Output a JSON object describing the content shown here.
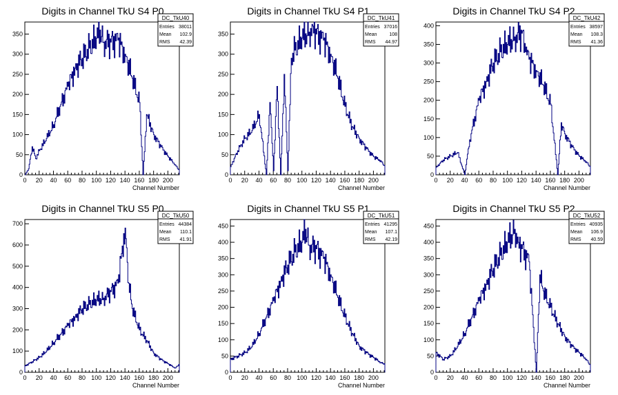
{
  "chart_data": [
    {
      "type": "histogram",
      "title": "Digits in Channel TkU S4 P0",
      "xlabel": "Channel Number",
      "ylabel": "",
      "xlim": [
        0,
        216
      ],
      "ylim": [
        0,
        380
      ],
      "xticks": [
        0,
        20,
        40,
        60,
        80,
        100,
        120,
        140,
        160,
        180,
        200
      ],
      "yticks": [
        0,
        50,
        100,
        150,
        200,
        250,
        300,
        350
      ],
      "stats": {
        "name": "DC_TkU40",
        "rows": [
          {
            "label": "Entries",
            "value": "38011"
          },
          {
            "label": "Mean",
            "value": "102.9"
          },
          {
            "label": "RMS",
            "value": "42.39"
          }
        ]
      },
      "series": [
        {
          "x": [
            0,
            5,
            10,
            15,
            20,
            30,
            40,
            50,
            60,
            70,
            80,
            90,
            100,
            105,
            110,
            120,
            130,
            140,
            150,
            160,
            165,
            170,
            180,
            190,
            200,
            210,
            216
          ],
          "y": [
            0,
            15,
            70,
            40,
            60,
            90,
            125,
            175,
            220,
            265,
            290,
            315,
            340,
            360,
            330,
            330,
            335,
            300,
            240,
            180,
            0,
            150,
            100,
            70,
            45,
            25,
            10
          ]
        }
      ]
    },
    {
      "type": "histogram",
      "title": "Digits in Channel TkU S4 P1",
      "xlabel": "Channel Number",
      "ylabel": "",
      "xlim": [
        0,
        216
      ],
      "ylim": [
        0,
        380
      ],
      "xticks": [
        0,
        20,
        40,
        60,
        80,
        100,
        120,
        140,
        160,
        180,
        200
      ],
      "yticks": [
        0,
        50,
        100,
        150,
        200,
        250,
        300,
        350
      ],
      "stats": {
        "name": "DC_TkU41",
        "rows": [
          {
            "label": "Entries",
            "value": "37016"
          },
          {
            "label": "Mean",
            "value": "108"
          },
          {
            "label": "RMS",
            "value": "44.97"
          }
        ]
      },
      "series": [
        {
          "x": [
            0,
            5,
            10,
            20,
            30,
            40,
            50,
            55,
            60,
            65,
            70,
            75,
            80,
            85,
            90,
            100,
            110,
            115,
            120,
            130,
            140,
            150,
            160,
            170,
            180,
            190,
            200,
            210,
            216
          ],
          "y": [
            20,
            40,
            60,
            90,
            110,
            150,
            0,
            180,
            10,
            220,
            0,
            250,
            10,
            290,
            310,
            340,
            355,
            370,
            350,
            335,
            300,
            240,
            170,
            120,
            90,
            65,
            45,
            35,
            20
          ]
        }
      ]
    },
    {
      "type": "histogram",
      "title": "Digits in Channel TkU S4 P2",
      "xlabel": "Channel Number",
      "ylabel": "",
      "xlim": [
        0,
        216
      ],
      "ylim": [
        0,
        410
      ],
      "xticks": [
        0,
        20,
        40,
        60,
        80,
        100,
        120,
        140,
        160,
        180,
        200
      ],
      "yticks": [
        0,
        50,
        100,
        150,
        200,
        250,
        300,
        350,
        400
      ],
      "stats": {
        "name": "DC_TkU42",
        "rows": [
          {
            "label": "Entries",
            "value": "38597"
          },
          {
            "label": "Mean",
            "value": "108.3"
          },
          {
            "label": "RMS",
            "value": "41.36"
          }
        ]
      },
      "series": [
        {
          "x": [
            0,
            5,
            10,
            20,
            30,
            40,
            45,
            50,
            60,
            70,
            80,
            90,
            100,
            110,
            120,
            125,
            130,
            140,
            150,
            160,
            170,
            175,
            180,
            190,
            200,
            210,
            216
          ],
          "y": [
            20,
            30,
            40,
            50,
            60,
            0,
            70,
            120,
            200,
            250,
            300,
            330,
            350,
            370,
            380,
            330,
            310,
            280,
            240,
            190,
            0,
            140,
            110,
            75,
            50,
            35,
            20
          ]
        }
      ]
    },
    {
      "type": "histogram",
      "title": "Digits in Channel TkU S5 P0",
      "xlabel": "Channel Number",
      "ylabel": "",
      "xlim": [
        0,
        216
      ],
      "ylim": [
        0,
        720
      ],
      "xticks": [
        0,
        20,
        40,
        60,
        80,
        100,
        120,
        140,
        160,
        180,
        200
      ],
      "yticks": [
        0,
        100,
        200,
        300,
        400,
        500,
        600,
        700
      ],
      "stats": {
        "name": "DC_TkU50",
        "rows": [
          {
            "label": "Entries",
            "value": "44384"
          },
          {
            "label": "Mean",
            "value": "110.1"
          },
          {
            "label": "RMS",
            "value": "41.91"
          }
        ]
      },
      "series": [
        {
          "x": [
            0,
            10,
            20,
            30,
            40,
            50,
            60,
            70,
            80,
            90,
            100,
            110,
            120,
            130,
            135,
            140,
            145,
            150,
            160,
            170,
            180,
            190,
            200,
            210,
            216
          ],
          "y": [
            30,
            50,
            70,
            100,
            140,
            180,
            220,
            260,
            300,
            320,
            340,
            350,
            380,
            420,
            560,
            680,
            420,
            300,
            200,
            150,
            90,
            60,
            40,
            20,
            40
          ]
        }
      ]
    },
    {
      "type": "histogram",
      "title": "Digits in Channel TkU S5 P1",
      "xlabel": "Channel Number",
      "ylabel": "",
      "xlim": [
        0,
        216
      ],
      "ylim": [
        0,
        470
      ],
      "xticks": [
        0,
        20,
        40,
        60,
        80,
        100,
        120,
        140,
        160,
        180,
        200
      ],
      "yticks": [
        0,
        50,
        100,
        150,
        200,
        250,
        300,
        350,
        400,
        450
      ],
      "stats": {
        "name": "DC_TkU51",
        "rows": [
          {
            "label": "Entries",
            "value": "41295"
          },
          {
            "label": "Mean",
            "value": "107.1"
          },
          {
            "label": "RMS",
            "value": "42.19"
          }
        ]
      },
      "series": [
        {
          "x": [
            0,
            10,
            20,
            30,
            40,
            50,
            60,
            70,
            80,
            90,
            100,
            105,
            110,
            120,
            130,
            140,
            150,
            160,
            170,
            180,
            190,
            200,
            210,
            216
          ],
          "y": [
            40,
            50,
            60,
            80,
            120,
            170,
            220,
            280,
            330,
            370,
            400,
            440,
            390,
            380,
            350,
            300,
            230,
            170,
            120,
            80,
            60,
            45,
            30,
            25
          ]
        }
      ]
    },
    {
      "type": "histogram",
      "title": "Digits in Channel TkU S5 P2",
      "xlabel": "Channel Number",
      "ylabel": "",
      "xlim": [
        0,
        216
      ],
      "ylim": [
        0,
        470
      ],
      "xticks": [
        0,
        20,
        40,
        60,
        80,
        100,
        120,
        140,
        160,
        180,
        200
      ],
      "yticks": [
        0,
        50,
        100,
        150,
        200,
        250,
        300,
        350,
        400,
        450
      ],
      "stats": {
        "name": "DC_TkU52",
        "rows": [
          {
            "label": "Entries",
            "value": "40935"
          },
          {
            "label": "Mean",
            "value": "106.9"
          },
          {
            "label": "RMS",
            "value": "40.59"
          }
        ]
      },
      "series": [
        {
          "x": [
            0,
            10,
            20,
            30,
            40,
            50,
            60,
            70,
            80,
            90,
            100,
            110,
            115,
            120,
            130,
            140,
            145,
            150,
            160,
            170,
            180,
            190,
            200,
            210,
            216
          ],
          "y": [
            60,
            40,
            50,
            80,
            120,
            170,
            220,
            270,
            320,
            360,
            400,
            440,
            400,
            380,
            340,
            0,
            300,
            250,
            200,
            150,
            110,
            80,
            60,
            40,
            20
          ]
        }
      ]
    }
  ]
}
